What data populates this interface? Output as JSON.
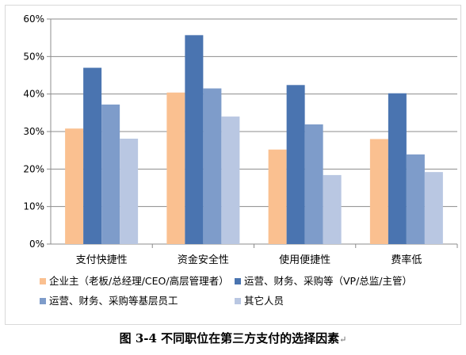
{
  "caption": {
    "text": "图 3-4 不同职位在第三方支付的选择因素",
    "return_mark": "↵"
  },
  "chart_data": {
    "type": "bar",
    "categories": [
      "支付快捷性",
      "资金安全性",
      "使用便捷性",
      "费率低"
    ],
    "series": [
      {
        "name": "企业主（老板/总经理/CEO/高层管理者）",
        "color": "#fac090",
        "values": [
          30.8,
          40.4,
          25.2,
          28.0
        ]
      },
      {
        "name": "运营、财务、采购等（VP/总监/主管）",
        "color": "#4a74b0",
        "values": [
          47.0,
          55.7,
          42.4,
          40.2
        ]
      },
      {
        "name": "运营、财务、采购等基层员工",
        "color": "#7e9cca",
        "values": [
          37.2,
          41.5,
          31.9,
          23.9
        ]
      },
      {
        "name": "其它人员",
        "color": "#b9c7e2",
        "values": [
          28.1,
          34.0,
          18.4,
          19.2
        ]
      }
    ],
    "ylim": [
      0,
      60
    ],
    "yticks": [
      "0%",
      "10%",
      "20%",
      "30%",
      "40%",
      "50%",
      "60%"
    ],
    "ytick_values": [
      0,
      10,
      20,
      30,
      40,
      50,
      60
    ],
    "grid": true,
    "legend_position": "bottom"
  }
}
